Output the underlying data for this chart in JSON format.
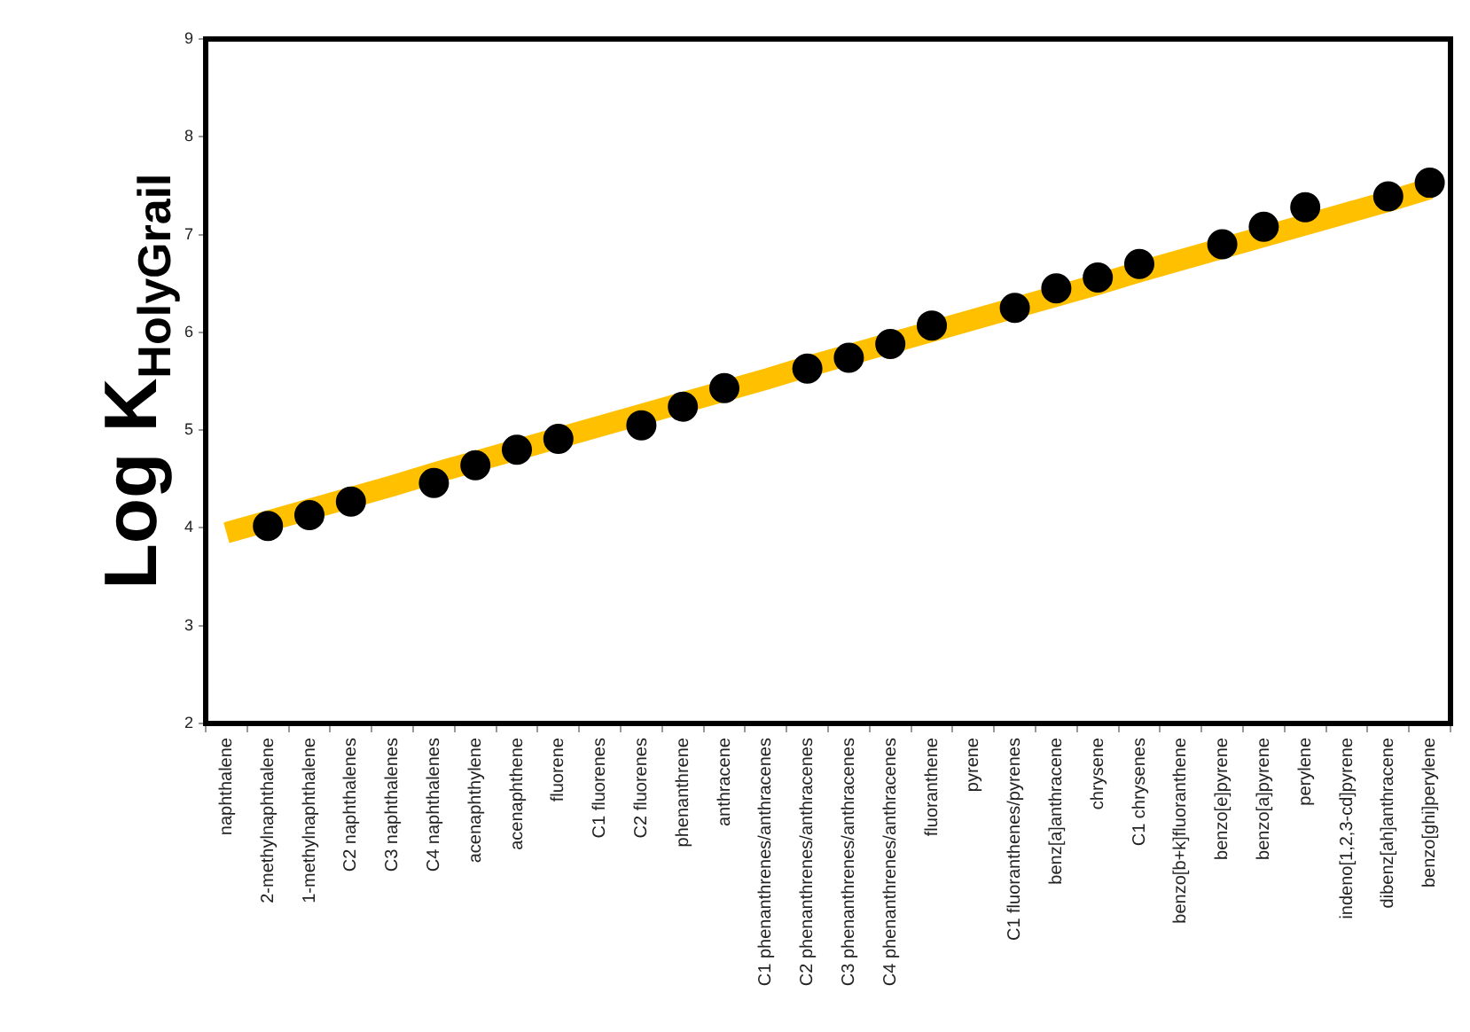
{
  "chart_data": {
    "type": "line",
    "ylabel": "Log K$_{HolyGrail}$",
    "ylim": [
      2,
      9
    ],
    "yticks": [
      2,
      3,
      4,
      5,
      6,
      7,
      8,
      9
    ],
    "marker": "none",
    "categories": [
      "naphthalene",
      "2-methylnaphthalene",
      "1-methylnaphthalene",
      "C2 naphthalenes",
      "C3 naphthalenes",
      "C4 naphthalenes",
      "acenaphthylene",
      "acenaphthene",
      "fluorene",
      "C1 fluorenes",
      "C2 fluorenes",
      "phenanthrene",
      "anthracene",
      "C1 phenanthrenes/anthracenes",
      "C2 phenanthrenes/anthracenes",
      "C3 phenanthrenes/anthracenes",
      "C4 phenanthrenes/anthracenes",
      "fluoranthene",
      "pyrene",
      "C1 fluoranthenes/pyrenes",
      "benz[a]anthracene",
      "chrysene",
      "C1 chrysenes",
      "benzo[b+k]fluoranthene",
      "benzo[e]pyrene",
      "benzo[a]pyrene",
      "perylene",
      "indeno[1,2,3-cd]pyrene",
      "dibenz[ah]anthracene",
      "benzo[ghi]perylene"
    ],
    "series": [
      {
        "color": "#ffc000",
        "values": [
          3.95,
          4.07,
          4.19,
          4.31,
          4.43,
          4.56,
          4.68,
          4.8,
          4.92,
          5.04,
          5.16,
          5.28,
          5.4,
          5.52,
          5.65,
          5.77,
          5.89,
          6.01,
          6.13,
          6.25,
          6.37,
          6.49,
          6.62,
          6.74,
          6.86,
          6.98,
          7.1,
          7.22,
          7.34,
          7.47
        ]
      },
      {
        "type": "scatter",
        "color": "#000000",
        "marker": "circle",
        "x": [
          "2-methylnaphthalene",
          "1-methylnaphthalene",
          "C2 naphthalenes",
          "C4 naphthalenes",
          "acenaphthylene",
          "acenaphthene",
          "fluorene",
          "C2 fluorenes",
          "phenanthrene",
          "anthracene",
          "C2 phenanthrenes/anthracenes",
          "C3 phenanthrenes/anthracenes",
          "C4 phenanthrenes/anthracenes",
          "fluoranthene",
          "C1 fluoranthenes/pyrenes",
          "benz[a]anthracene",
          "chrysene",
          "C1 chrysenes",
          "benzo[e]pyrene",
          "benzo[a]pyrene",
          "perylene",
          "dibenz[ah]anthracene",
          "benzo[ghi]perylene"
        ],
        "values": [
          4.02,
          4.13,
          4.27,
          4.46,
          4.64,
          4.8,
          4.91,
          5.05,
          5.24,
          5.43,
          5.63,
          5.74,
          5.88,
          6.07,
          6.25,
          6.45,
          6.56,
          6.7,
          6.9,
          7.08,
          7.28,
          7.39,
          7.53
        ]
      }
    ]
  }
}
